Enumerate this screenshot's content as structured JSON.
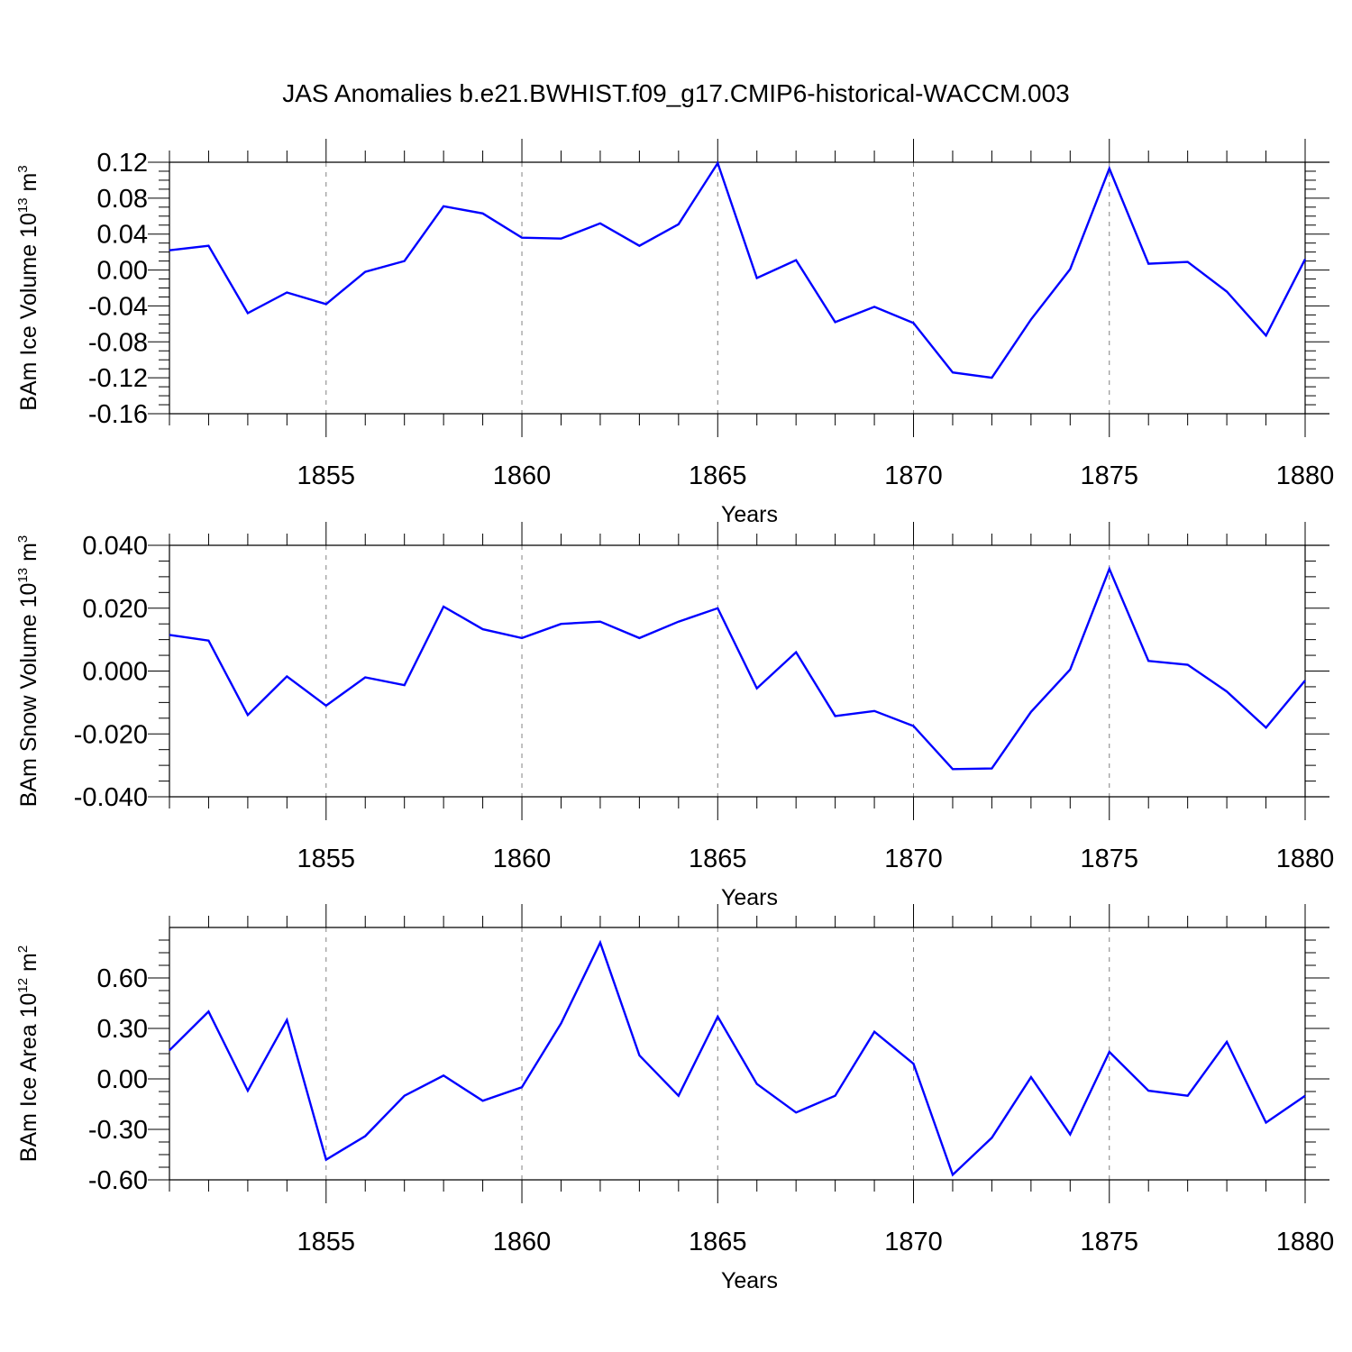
{
  "title": "JAS Anomalies b.e21.BWHIST.f09_g17.CMIP6-historical-WACCM.003",
  "colors": {
    "line": "#0000ff",
    "axis": "#000000",
    "grid": "#808080"
  },
  "chart_data": [
    {
      "type": "line",
      "ylabel": "BAm Ice Volume 10",
      "ylabel_exp": "13",
      "ylabel_unit": " m",
      "ylabel_unit_exp": "3",
      "xlabel": "Years",
      "xlim": [
        1851,
        1880
      ],
      "ylim": [
        -0.16,
        0.12
      ],
      "yticks": [
        -0.16,
        -0.12,
        -0.08,
        -0.04,
        0.0,
        0.04,
        0.08,
        0.12
      ],
      "ytick_labels": [
        "-0.16",
        "-0.12",
        "-0.08",
        "-0.04",
        "0.00",
        "0.04",
        "0.08",
        "0.12"
      ],
      "xticks": [
        1855,
        1860,
        1865,
        1870,
        1875,
        1880
      ],
      "xtick_labels": [
        "1855",
        "1860",
        "1865",
        "1870",
        "1875",
        "1880"
      ],
      "grid": "vertical dashed at major x ticks",
      "x": [
        1851,
        1852,
        1853,
        1854,
        1855,
        1856,
        1857,
        1858,
        1859,
        1860,
        1861,
        1862,
        1863,
        1864,
        1865,
        1866,
        1867,
        1868,
        1869,
        1870,
        1871,
        1872,
        1873,
        1874,
        1875,
        1876,
        1877,
        1878,
        1879,
        1880
      ],
      "y": [
        0.022,
        0.027,
        -0.048,
        -0.025,
        -0.038,
        -0.002,
        0.01,
        0.071,
        0.063,
        0.036,
        0.035,
        0.052,
        0.027,
        0.051,
        0.119,
        -0.009,
        0.011,
        -0.058,
        -0.041,
        -0.059,
        -0.114,
        -0.12,
        -0.055,
        0.001,
        0.113,
        0.007,
        0.009,
        -0.024,
        -0.073,
        0.012
      ]
    },
    {
      "type": "line",
      "ylabel": "BAm Snow Volume 10",
      "ylabel_exp": "13",
      "ylabel_unit": " m",
      "ylabel_unit_exp": "3",
      "xlabel": "Years",
      "xlim": [
        1851,
        1880
      ],
      "ylim": [
        -0.04,
        0.04
      ],
      "yticks": [
        -0.04,
        -0.02,
        0.0,
        0.02,
        0.04
      ],
      "ytick_labels": [
        "-0.040",
        "-0.020",
        "0.000",
        "0.020",
        "0.040"
      ],
      "xticks": [
        1855,
        1860,
        1865,
        1870,
        1875,
        1880
      ],
      "xtick_labels": [
        "1855",
        "1860",
        "1865",
        "1870",
        "1875",
        "1880"
      ],
      "grid": "vertical dashed at major x ticks",
      "x": [
        1851,
        1852,
        1853,
        1854,
        1855,
        1856,
        1857,
        1858,
        1859,
        1860,
        1861,
        1862,
        1863,
        1864,
        1865,
        1866,
        1867,
        1868,
        1869,
        1870,
        1871,
        1872,
        1873,
        1874,
        1875,
        1876,
        1877,
        1878,
        1879,
        1880
      ],
      "y": [
        0.0115,
        0.0097,
        -0.014,
        -0.0017,
        -0.011,
        -0.002,
        -0.0045,
        0.0205,
        0.0133,
        0.0105,
        0.015,
        0.0157,
        0.0105,
        0.0157,
        0.02,
        -0.0055,
        0.006,
        -0.0143,
        -0.0127,
        -0.0175,
        -0.0312,
        -0.031,
        -0.013,
        0.0005,
        0.0325,
        0.0032,
        0.002,
        -0.0065,
        -0.018,
        -0.003
      ]
    },
    {
      "type": "line",
      "ylabel": "BAm Ice Area 10",
      "ylabel_exp": "12",
      "ylabel_unit": " m",
      "ylabel_unit_exp": "2",
      "xlabel": "Years",
      "xlim": [
        1851,
        1880
      ],
      "ylim": [
        -0.6,
        0.9
      ],
      "yticks": [
        -0.6,
        -0.3,
        0.0,
        0.3,
        0.6
      ],
      "ytick_labels": [
        "-0.60",
        "-0.30",
        "0.00",
        "0.30",
        "0.60"
      ],
      "xticks": [
        1855,
        1860,
        1865,
        1870,
        1875,
        1880
      ],
      "xtick_labels": [
        "1855",
        "1860",
        "1865",
        "1870",
        "1875",
        "1880"
      ],
      "grid": "vertical dashed at major x ticks",
      "x": [
        1851,
        1852,
        1853,
        1854,
        1855,
        1856,
        1857,
        1858,
        1859,
        1860,
        1861,
        1862,
        1863,
        1864,
        1865,
        1866,
        1867,
        1868,
        1869,
        1870,
        1871,
        1872,
        1873,
        1874,
        1875,
        1876,
        1877,
        1878,
        1879,
        1880
      ],
      "y": [
        0.17,
        0.4,
        -0.07,
        0.35,
        -0.48,
        -0.34,
        -0.1,
        0.02,
        -0.13,
        -0.05,
        0.33,
        0.81,
        0.14,
        -0.1,
        0.37,
        -0.03,
        -0.2,
        -0.1,
        0.28,
        0.09,
        -0.57,
        -0.35,
        0.01,
        -0.33,
        0.16,
        -0.07,
        -0.1,
        0.22,
        -0.26,
        -0.1
      ]
    }
  ]
}
